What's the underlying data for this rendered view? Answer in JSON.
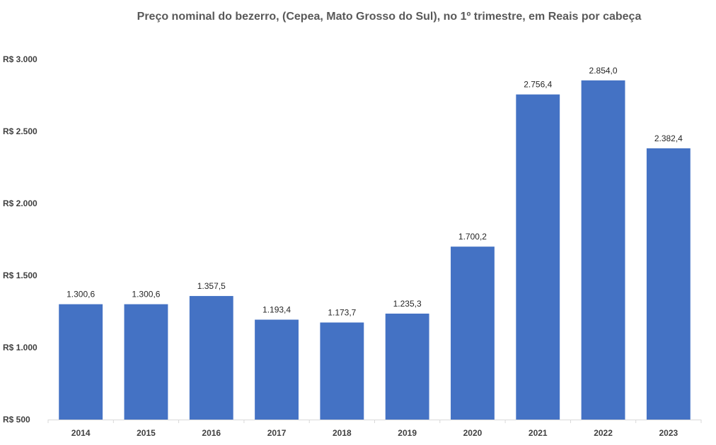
{
  "chart_data": {
    "type": "bar",
    "title": "Preço nominal do bezerro, (Cepea, Mato Grosso do Sul), no 1º trimestre, em Reais por cabeça",
    "xlabel": "",
    "ylabel": "",
    "categories": [
      "2014",
      "2015",
      "2016",
      "2017",
      "2018",
      "2019",
      "2020",
      "2021",
      "2022",
      "2023"
    ],
    "values": [
      1300.6,
      1300.6,
      1357.5,
      1193.4,
      1173.7,
      1235.3,
      1700.2,
      2756.4,
      2854.0,
      2382.4
    ],
    "data_labels": [
      "1.300,6",
      "1.300,6",
      "1.357,5",
      "1.193,4",
      "1.173,7",
      "1.235,3",
      "1.700,2",
      "2.756,4",
      "2.854,0",
      "2.382,4"
    ],
    "ylim": [
      500,
      3000
    ],
    "yticks": [
      500,
      1000,
      1500,
      2000,
      2500,
      3000
    ],
    "ytick_labels": [
      "R$ 500",
      "R$ 1.000",
      "R$ 1.500",
      "R$ 2.000",
      "R$ 2.500",
      "R$ 3.000"
    ],
    "grid": false,
    "legend": "none",
    "bar_color": "#4472C4",
    "axis_color": "#D9D9D9"
  }
}
